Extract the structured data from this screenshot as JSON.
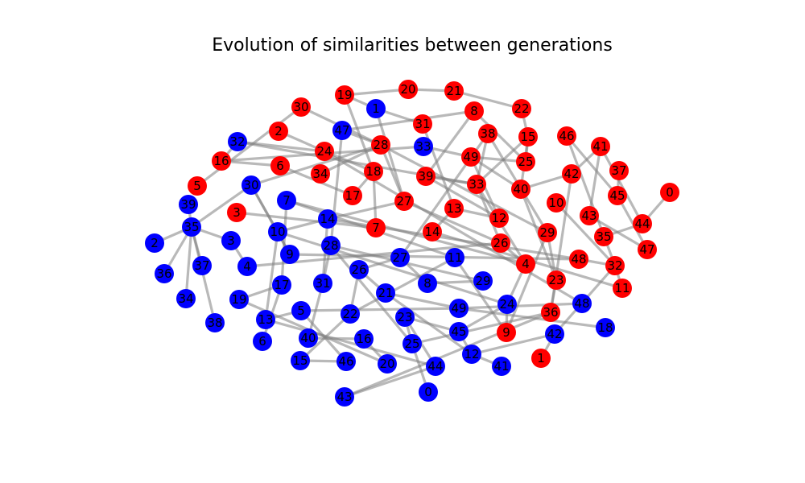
{
  "title": "Evolution of similarities between generations",
  "colors": {
    "generation_a": "#ff0000",
    "generation_b": "#0000ff",
    "edge": "#808080",
    "background": "#ffffff"
  },
  "nodes": [
    {
      "id": "r0",
      "label": "0",
      "group": "generation_a"
    },
    {
      "id": "r1",
      "label": "1",
      "group": "generation_a"
    },
    {
      "id": "r2",
      "label": "2",
      "group": "generation_a"
    },
    {
      "id": "r3",
      "label": "3",
      "group": "generation_a"
    },
    {
      "id": "r4",
      "label": "4",
      "group": "generation_a"
    },
    {
      "id": "r5",
      "label": "5",
      "group": "generation_a"
    },
    {
      "id": "r6",
      "label": "6",
      "group": "generation_a"
    },
    {
      "id": "r7",
      "label": "7",
      "group": "generation_a"
    },
    {
      "id": "r8",
      "label": "8",
      "group": "generation_a"
    },
    {
      "id": "r9",
      "label": "9",
      "group": "generation_a"
    },
    {
      "id": "r10",
      "label": "10",
      "group": "generation_a"
    },
    {
      "id": "r11",
      "label": "11",
      "group": "generation_a"
    },
    {
      "id": "r12",
      "label": "12",
      "group": "generation_a"
    },
    {
      "id": "r13",
      "label": "13",
      "group": "generation_a"
    },
    {
      "id": "r14",
      "label": "14",
      "group": "generation_a"
    },
    {
      "id": "r15",
      "label": "15",
      "group": "generation_a"
    },
    {
      "id": "r16",
      "label": "16",
      "group": "generation_a"
    },
    {
      "id": "r17",
      "label": "17",
      "group": "generation_a"
    },
    {
      "id": "r18",
      "label": "18",
      "group": "generation_a"
    },
    {
      "id": "r19",
      "label": "19",
      "group": "generation_a"
    },
    {
      "id": "r20",
      "label": "20",
      "group": "generation_a"
    },
    {
      "id": "r21",
      "label": "21",
      "group": "generation_a"
    },
    {
      "id": "r22",
      "label": "22",
      "group": "generation_a"
    },
    {
      "id": "r23",
      "label": "23",
      "group": "generation_a"
    },
    {
      "id": "r24",
      "label": "24",
      "group": "generation_a"
    },
    {
      "id": "r25",
      "label": "25",
      "group": "generation_a"
    },
    {
      "id": "r26",
      "label": "26",
      "group": "generation_a"
    },
    {
      "id": "r27",
      "label": "27",
      "group": "generation_a"
    },
    {
      "id": "r28",
      "label": "28",
      "group": "generation_a"
    },
    {
      "id": "r29",
      "label": "29",
      "group": "generation_a"
    },
    {
      "id": "r30",
      "label": "30",
      "group": "generation_a"
    },
    {
      "id": "r31",
      "label": "31",
      "group": "generation_a"
    },
    {
      "id": "r32",
      "label": "32",
      "group": "generation_a"
    },
    {
      "id": "r33",
      "label": "33",
      "group": "generation_a"
    },
    {
      "id": "r34",
      "label": "34",
      "group": "generation_a"
    },
    {
      "id": "r35",
      "label": "35",
      "group": "generation_a"
    },
    {
      "id": "r36",
      "label": "36",
      "group": "generation_a"
    },
    {
      "id": "r37",
      "label": "37",
      "group": "generation_a"
    },
    {
      "id": "r38",
      "label": "38",
      "group": "generation_a"
    },
    {
      "id": "r39",
      "label": "39",
      "group": "generation_a"
    },
    {
      "id": "r40",
      "label": "40",
      "group": "generation_a"
    },
    {
      "id": "r41",
      "label": "41",
      "group": "generation_a"
    },
    {
      "id": "r42",
      "label": "42",
      "group": "generation_a"
    },
    {
      "id": "r43",
      "label": "43",
      "group": "generation_a"
    },
    {
      "id": "r44",
      "label": "44",
      "group": "generation_a"
    },
    {
      "id": "r45",
      "label": "45",
      "group": "generation_a"
    },
    {
      "id": "r46",
      "label": "46",
      "group": "generation_a"
    },
    {
      "id": "r47",
      "label": "47",
      "group": "generation_a"
    },
    {
      "id": "r48",
      "label": "48",
      "group": "generation_a"
    },
    {
      "id": "r49",
      "label": "49",
      "group": "generation_a"
    },
    {
      "id": "b0",
      "label": "0",
      "group": "generation_b"
    },
    {
      "id": "b1",
      "label": "1",
      "group": "generation_b"
    },
    {
      "id": "b2",
      "label": "2",
      "group": "generation_b"
    },
    {
      "id": "b3",
      "label": "3",
      "group": "generation_b"
    },
    {
      "id": "b4",
      "label": "4",
      "group": "generation_b"
    },
    {
      "id": "b5",
      "label": "5",
      "group": "generation_b"
    },
    {
      "id": "b6",
      "label": "6",
      "group": "generation_b"
    },
    {
      "id": "b7",
      "label": "7",
      "group": "generation_b"
    },
    {
      "id": "b8",
      "label": "8",
      "group": "generation_b"
    },
    {
      "id": "b9",
      "label": "9",
      "group": "generation_b"
    },
    {
      "id": "b10",
      "label": "10",
      "group": "generation_b"
    },
    {
      "id": "b11",
      "label": "11",
      "group": "generation_b"
    },
    {
      "id": "b12",
      "label": "12",
      "group": "generation_b"
    },
    {
      "id": "b13",
      "label": "13",
      "group": "generation_b"
    },
    {
      "id": "b14",
      "label": "14",
      "group": "generation_b"
    },
    {
      "id": "b15",
      "label": "15",
      "group": "generation_b"
    },
    {
      "id": "b16",
      "label": "16",
      "group": "generation_b"
    },
    {
      "id": "b17",
      "label": "17",
      "group": "generation_b"
    },
    {
      "id": "b18",
      "label": "18",
      "group": "generation_b"
    },
    {
      "id": "b19",
      "label": "19",
      "group": "generation_b"
    },
    {
      "id": "b20",
      "label": "20",
      "group": "generation_b"
    },
    {
      "id": "b21",
      "label": "21",
      "group": "generation_b"
    },
    {
      "id": "b22",
      "label": "22",
      "group": "generation_b"
    },
    {
      "id": "b23",
      "label": "23",
      "group": "generation_b"
    },
    {
      "id": "b24",
      "label": "24",
      "group": "generation_b"
    },
    {
      "id": "b25",
      "label": "25",
      "group": "generation_b"
    },
    {
      "id": "b26",
      "label": "26",
      "group": "generation_b"
    },
    {
      "id": "b27",
      "label": "27",
      "group": "generation_b"
    },
    {
      "id": "b28",
      "label": "28",
      "group": "generation_b"
    },
    {
      "id": "b29",
      "label": "29",
      "group": "generation_b"
    },
    {
      "id": "b30",
      "label": "30",
      "group": "generation_b"
    },
    {
      "id": "b31",
      "label": "31",
      "group": "generation_b"
    },
    {
      "id": "b32",
      "label": "32",
      "group": "generation_b"
    },
    {
      "id": "b33",
      "label": "33",
      "group": "generation_b"
    },
    {
      "id": "b34",
      "label": "34",
      "group": "generation_b"
    },
    {
      "id": "b35",
      "label": "35",
      "group": "generation_b"
    },
    {
      "id": "b36",
      "label": "36",
      "group": "generation_b"
    },
    {
      "id": "b37",
      "label": "37",
      "group": "generation_b"
    },
    {
      "id": "b38",
      "label": "38",
      "group": "generation_b"
    },
    {
      "id": "b39",
      "label": "39",
      "group": "generation_b"
    },
    {
      "id": "b40",
      "label": "40",
      "group": "generation_b"
    },
    {
      "id": "b41",
      "label": "41",
      "group": "generation_b"
    },
    {
      "id": "b42",
      "label": "42",
      "group": "generation_b"
    },
    {
      "id": "b43",
      "label": "43",
      "group": "generation_b"
    },
    {
      "id": "b44",
      "label": "44",
      "group": "generation_b"
    },
    {
      "id": "b45",
      "label": "45",
      "group": "generation_b"
    },
    {
      "id": "b46",
      "label": "46",
      "group": "generation_b"
    },
    {
      "id": "b47",
      "label": "47",
      "group": "generation_b"
    },
    {
      "id": "b48",
      "label": "48",
      "group": "generation_b"
    },
    {
      "id": "b49",
      "label": "49",
      "group": "generation_b"
    }
  ],
  "edges": [
    [
      "r30",
      "r28"
    ],
    [
      "r19",
      "r20"
    ],
    [
      "r19",
      "r18"
    ],
    [
      "r20",
      "r21"
    ],
    [
      "r21",
      "r22"
    ],
    [
      "r22",
      "r15"
    ],
    [
      "r8",
      "r25"
    ],
    [
      "r8",
      "r39"
    ],
    [
      "r38",
      "r33"
    ],
    [
      "r38",
      "r29"
    ],
    [
      "r15",
      "r25"
    ],
    [
      "r15",
      "r33"
    ],
    [
      "r15",
      "r40"
    ],
    [
      "r46",
      "r45"
    ],
    [
      "r46",
      "r32"
    ],
    [
      "r41",
      "r42"
    ],
    [
      "r41",
      "r43"
    ],
    [
      "r41",
      "r44"
    ],
    [
      "r37",
      "r45"
    ],
    [
      "r0",
      "r44"
    ],
    [
      "r44",
      "r35"
    ],
    [
      "r45",
      "r47"
    ],
    [
      "r43",
      "r47"
    ],
    [
      "r42",
      "r40"
    ],
    [
      "r10",
      "r32"
    ],
    [
      "r2",
      "r24"
    ],
    [
      "r16",
      "r6"
    ],
    [
      "r6",
      "r17"
    ],
    [
      "r34",
      "r28"
    ],
    [
      "r18",
      "r17"
    ],
    [
      "r28",
      "r29"
    ],
    [
      "r28",
      "r27"
    ],
    [
      "r24",
      "r18"
    ],
    [
      "r31",
      "r13"
    ],
    [
      "r49",
      "r40"
    ],
    [
      "r49",
      "r12"
    ],
    [
      "r39",
      "r12"
    ],
    [
      "r39",
      "r33"
    ],
    [
      "r33",
      "r4"
    ],
    [
      "r33",
      "r26"
    ],
    [
      "r27",
      "r26"
    ],
    [
      "r13",
      "r14"
    ],
    [
      "r13",
      "r12"
    ],
    [
      "r40",
      "r23"
    ],
    [
      "r29",
      "r23"
    ],
    [
      "r29",
      "r9"
    ],
    [
      "r26",
      "r4"
    ],
    [
      "r48",
      "r32"
    ],
    [
      "r32",
      "r11"
    ],
    [
      "r23",
      "r36"
    ],
    [
      "r36",
      "r42"
    ],
    [
      "r25",
      "r49"
    ],
    [
      "r5",
      "r30"
    ],
    [
      "r3",
      "r7"
    ],
    [
      "r7",
      "r18"
    ],
    [
      "r14",
      "r11"
    ],
    [
      "b32",
      "r16"
    ],
    [
      "b32",
      "r33"
    ],
    [
      "b32",
      "r24"
    ],
    [
      "b47",
      "b28"
    ],
    [
      "b47",
      "r28"
    ],
    [
      "b47",
      "r8"
    ],
    [
      "b1",
      "r31"
    ],
    [
      "b1",
      "r27"
    ],
    [
      "b1",
      "r19"
    ],
    [
      "b33",
      "r16"
    ],
    [
      "b33",
      "r49"
    ],
    [
      "b39",
      "b35"
    ],
    [
      "b35",
      "b2"
    ],
    [
      "b35",
      "b36"
    ],
    [
      "b35",
      "b37"
    ],
    [
      "b35",
      "b34"
    ],
    [
      "b35",
      "b38"
    ],
    [
      "b35",
      "b3"
    ],
    [
      "b30",
      "b35"
    ],
    [
      "b30",
      "b10"
    ],
    [
      "b30",
      "r28"
    ],
    [
      "b30",
      "b9"
    ],
    [
      "b7",
      "b17"
    ],
    [
      "b7",
      "r4"
    ],
    [
      "b7",
      "b11"
    ],
    [
      "b14",
      "b10"
    ],
    [
      "b14",
      "b31"
    ],
    [
      "b14",
      "r27"
    ],
    [
      "b14",
      "r48"
    ],
    [
      "b10",
      "b9"
    ],
    [
      "b10",
      "b13"
    ],
    [
      "b10",
      "b24"
    ],
    [
      "b3",
      "b4"
    ],
    [
      "b4",
      "r26"
    ],
    [
      "b28",
      "b31"
    ],
    [
      "b28",
      "b29"
    ],
    [
      "b28",
      "b25"
    ],
    [
      "b27",
      "b26"
    ],
    [
      "b27",
      "b8"
    ],
    [
      "b27",
      "r38"
    ],
    [
      "b26",
      "b22"
    ],
    [
      "b26",
      "b21"
    ],
    [
      "b21",
      "b49"
    ],
    [
      "b21",
      "b12"
    ],
    [
      "b17",
      "b6"
    ],
    [
      "b17",
      "b19"
    ],
    [
      "b31",
      "b40"
    ],
    [
      "b5",
      "b13"
    ],
    [
      "b5",
      "b46"
    ],
    [
      "b5",
      "b49"
    ],
    [
      "b13",
      "b44"
    ],
    [
      "b19",
      "b20"
    ],
    [
      "b22",
      "b15"
    ],
    [
      "b22",
      "b11"
    ],
    [
      "b40",
      "b16"
    ],
    [
      "b16",
      "b20"
    ],
    [
      "b23",
      "b45"
    ],
    [
      "b23",
      "b25"
    ],
    [
      "b23",
      "b44"
    ],
    [
      "b25",
      "r36"
    ],
    [
      "b25",
      "b0"
    ],
    [
      "b49",
      "b18"
    ],
    [
      "b49",
      "b48"
    ],
    [
      "b24",
      "b45"
    ],
    [
      "b24",
      "r4"
    ],
    [
      "b24",
      "r9"
    ],
    [
      "b45",
      "b12"
    ],
    [
      "b12",
      "b41"
    ],
    [
      "b12",
      "b42"
    ],
    [
      "b42",
      "r1"
    ],
    [
      "b42",
      "r32"
    ],
    [
      "b43",
      "b44"
    ],
    [
      "b43",
      "r36"
    ],
    [
      "b46",
      "b15"
    ],
    [
      "b11",
      "r9"
    ],
    [
      "b8",
      "b29"
    ],
    [
      "b48",
      "r24"
    ],
    [
      "b9",
      "r48"
    ]
  ]
}
